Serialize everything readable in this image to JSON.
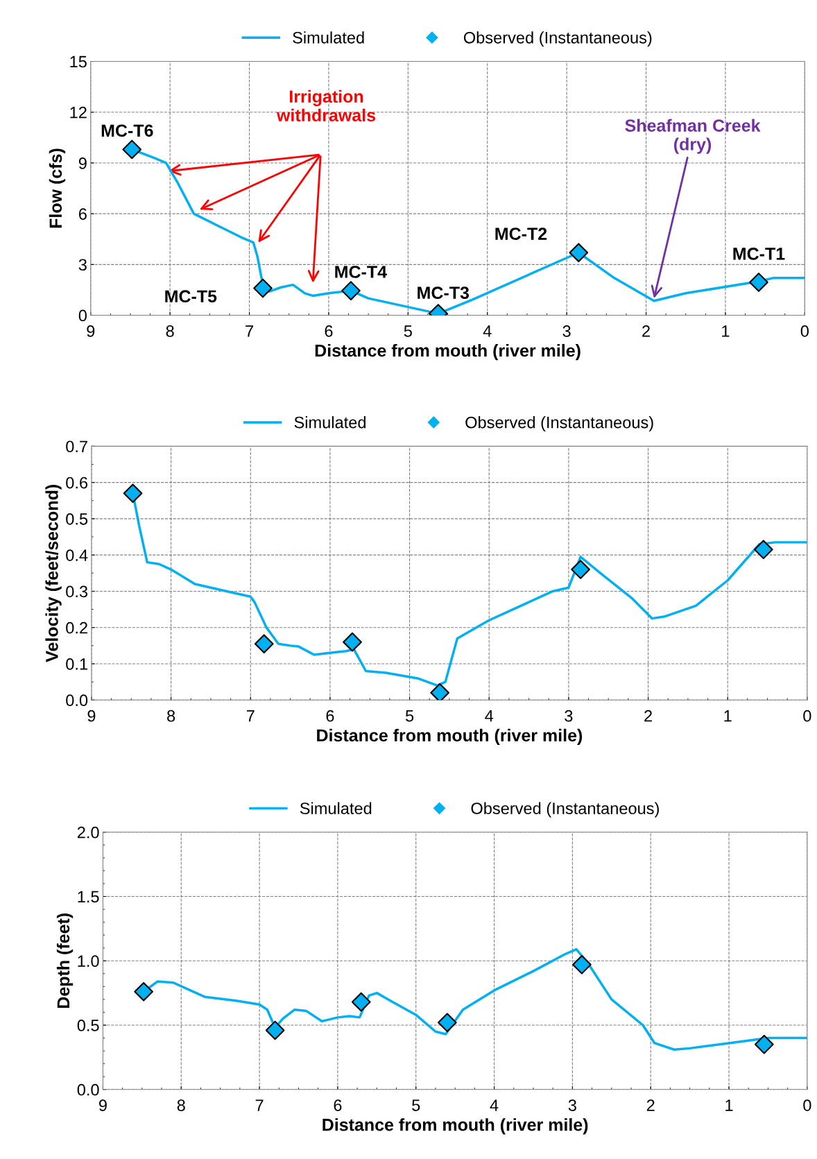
{
  "chart_data": [
    {
      "type": "line",
      "xlabel": "Distance from mouth (river mile)",
      "ylabel": "Flow (cfs)",
      "xlim": [
        9,
        0
      ],
      "xticks": [
        9,
        8,
        7,
        6,
        5,
        4,
        3,
        2,
        1,
        0
      ],
      "ylim": [
        0,
        15
      ],
      "yticks": [
        0,
        3,
        6,
        9,
        12,
        15
      ],
      "grid": true,
      "legend": "top",
      "series": [
        {
          "name": "Simulated",
          "type": "line",
          "color": "#00b0f0",
          "marker": "none",
          "x": [
            8.48,
            8.2,
            8.05,
            7.9,
            7.7,
            7.4,
            7.1,
            6.95,
            6.9,
            6.83,
            6.75,
            6.6,
            6.45,
            6.3,
            6.2,
            6.0,
            5.72,
            5.5,
            4.62,
            4.2,
            2.85,
            2.4,
            1.9,
            1.5,
            0.58,
            0.4,
            0
          ],
          "values": [
            9.8,
            9.3,
            9.0,
            7.8,
            6.0,
            5.3,
            4.6,
            4.3,
            3.5,
            1.8,
            1.4,
            1.65,
            1.8,
            1.3,
            1.15,
            1.3,
            1.45,
            1.0,
            0.1,
            0.9,
            3.7,
            2.2,
            0.85,
            1.3,
            2.0,
            2.2,
            2.2
          ]
        },
        {
          "name": "Observed (Instantaneous)",
          "type": "scatter",
          "color": "#00b0f0",
          "marker": "diamond",
          "x": [
            8.48,
            6.83,
            5.72,
            4.62,
            2.85,
            0.58
          ],
          "values": [
            9.8,
            1.6,
            1.45,
            0.1,
            3.7,
            1.95
          ]
        }
      ],
      "annotations": [
        {
          "text": "MC-T6",
          "x": 8.48,
          "y": 9.8
        },
        {
          "text": "MC-T5",
          "x": 6.83,
          "y": 1.6
        },
        {
          "text": "MC-T4",
          "x": 5.72,
          "y": 1.45
        },
        {
          "text": "MC-T3",
          "x": 4.62,
          "y": 0.1
        },
        {
          "text": "MC-T2",
          "x": 2.85,
          "y": 3.7
        },
        {
          "text": "MC-T1",
          "x": 0.58,
          "y": 1.95
        },
        "Irrigation\nwithdrawals",
        {
          "text": "Sheafman Creek\n(dry)",
          "x": 1.9,
          "y": 1.0
        }
      ]
    },
    {
      "type": "line",
      "xlabel": "Distance from mouth (river mile)",
      "ylabel": "Velocity (feet/second)",
      "xlim": [
        9,
        0
      ],
      "xticks": [
        9,
        8,
        7,
        6,
        5,
        4,
        3,
        2,
        1,
        0
      ],
      "ylim": [
        0,
        0.7
      ],
      "yticks": [
        {
          "value": 0,
          "label": "0.0"
        },
        0.1,
        0.2,
        0.3,
        0.4,
        0.5,
        0.6,
        0.7
      ],
      "grid": true,
      "legend": "top",
      "series": [
        {
          "name": "Simulated",
          "type": "line",
          "color": "#00b0f0",
          "marker": "none",
          "x": [
            8.48,
            8.4,
            8.3,
            8.15,
            8.0,
            7.7,
            7.3,
            7.0,
            6.95,
            6.8,
            6.65,
            6.5,
            6.4,
            6.2,
            6.0,
            5.8,
            5.7,
            5.55,
            5.3,
            4.9,
            4.65,
            4.55,
            4.4,
            4.0,
            3.6,
            3.2,
            3.0,
            2.85,
            2.6,
            2.2,
            1.95,
            1.8,
            1.4,
            1.0,
            0.6,
            0.4,
            0
          ],
          "values": [
            0.57,
            0.48,
            0.38,
            0.375,
            0.36,
            0.32,
            0.3,
            0.285,
            0.27,
            0.2,
            0.155,
            0.15,
            0.148,
            0.125,
            0.13,
            0.135,
            0.14,
            0.08,
            0.075,
            0.06,
            0.04,
            0.05,
            0.17,
            0.22,
            0.26,
            0.3,
            0.31,
            0.395,
            0.35,
            0.28,
            0.225,
            0.23,
            0.26,
            0.33,
            0.43,
            0.435,
            0.435
          ]
        },
        {
          "name": "Observed (Instantaneous)",
          "type": "scatter",
          "color": "#00b0f0",
          "marker": "diamond",
          "x": [
            8.48,
            6.83,
            5.72,
            4.62,
            2.85,
            0.55
          ],
          "values": [
            0.57,
            0.155,
            0.16,
            0.02,
            0.36,
            0.415
          ]
        }
      ]
    },
    {
      "type": "line",
      "xlabel": "Distance from mouth (river mile)",
      "ylabel": "Depth (feet)",
      "xlim": [
        9,
        0
      ],
      "xticks": [
        9,
        8,
        7,
        6,
        5,
        4,
        3,
        2,
        1,
        0
      ],
      "ylim": [
        0,
        2
      ],
      "yticks": [
        {
          "value": 0,
          "label": "0.0"
        },
        0.5,
        {
          "value": 1,
          "label": "1.0"
        },
        1.5,
        {
          "value": 2,
          "label": "2.0"
        }
      ],
      "grid": true,
      "legend": "top",
      "series": [
        {
          "name": "Simulated",
          "type": "line",
          "color": "#00b0f0",
          "marker": "none",
          "x": [
            8.48,
            8.3,
            8.1,
            7.7,
            7.3,
            7.0,
            6.9,
            6.8,
            6.7,
            6.55,
            6.4,
            6.2,
            6.0,
            5.85,
            5.72,
            5.6,
            5.5,
            5.3,
            5.0,
            4.75,
            4.62,
            4.4,
            4.0,
            3.5,
            3.1,
            2.95,
            2.8,
            2.5,
            2.1,
            1.95,
            1.7,
            1.5,
            1.0,
            0.5,
            0
          ],
          "values": [
            0.76,
            0.84,
            0.83,
            0.72,
            0.69,
            0.66,
            0.62,
            0.48,
            0.55,
            0.62,
            0.61,
            0.53,
            0.56,
            0.57,
            0.56,
            0.73,
            0.75,
            0.68,
            0.58,
            0.45,
            0.43,
            0.62,
            0.77,
            0.92,
            1.05,
            1.09,
            0.98,
            0.7,
            0.5,
            0.36,
            0.31,
            0.32,
            0.36,
            0.4,
            0.4
          ]
        },
        {
          "name": "Observed (Instantaneous)",
          "type": "scatter",
          "color": "#00b0f0",
          "marker": "diamond",
          "x": [
            8.48,
            6.8,
            5.7,
            4.6,
            2.88,
            0.55
          ],
          "values": [
            0.76,
            0.46,
            0.68,
            0.52,
            0.97,
            0.35
          ]
        }
      ]
    }
  ]
}
